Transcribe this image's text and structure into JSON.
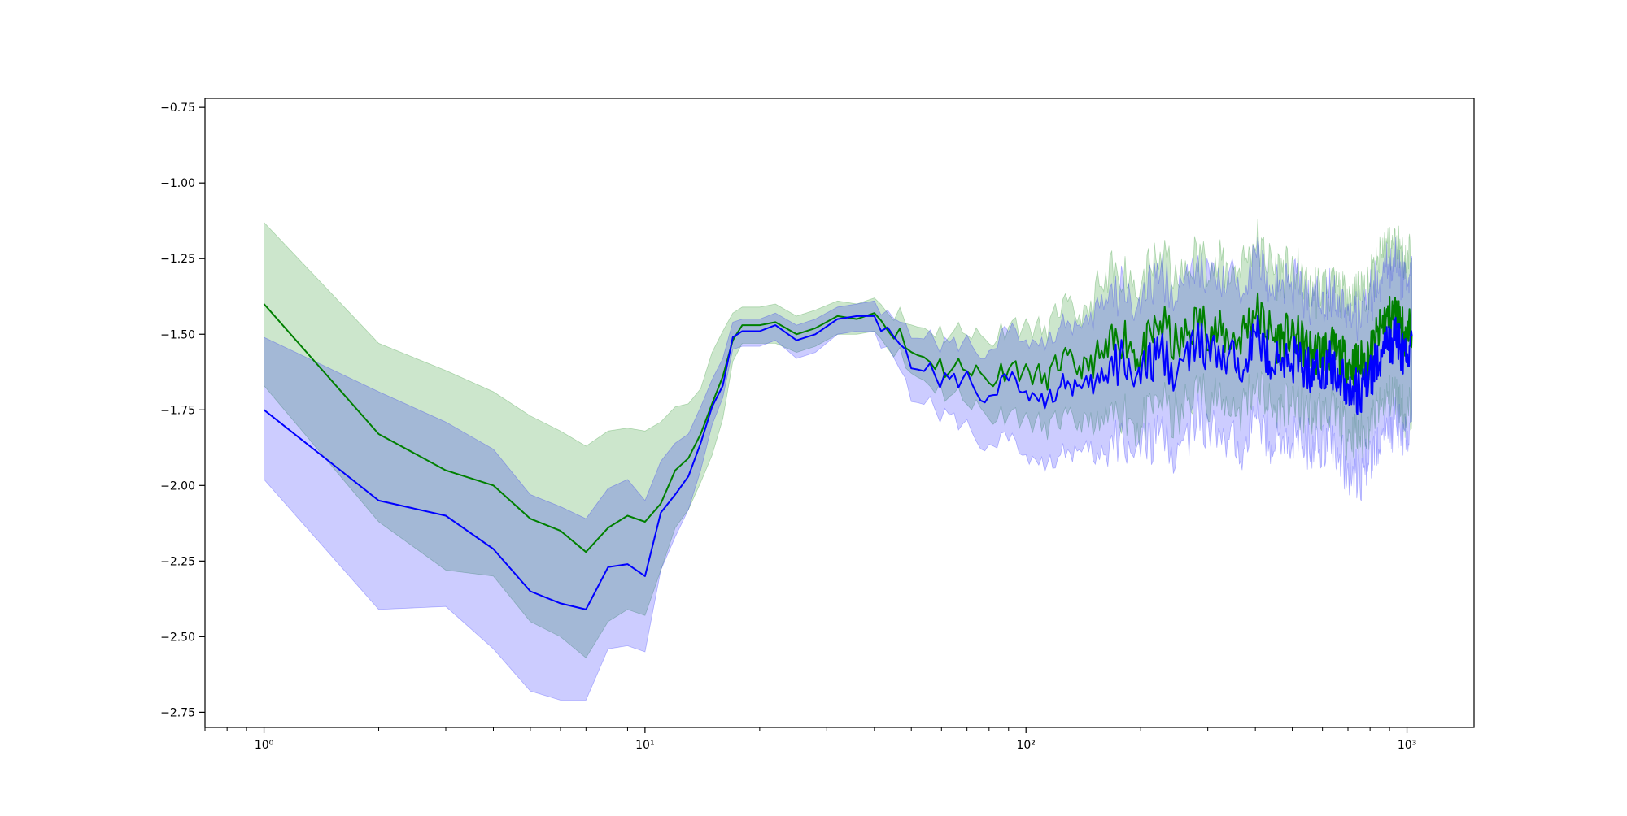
{
  "chart_data": {
    "type": "line",
    "title": "",
    "xlabel": "",
    "ylabel": "",
    "xscale": "log",
    "xlim": [
      0.7,
      1500
    ],
    "ylim": [
      -2.8,
      -0.72
    ],
    "grid": false,
    "legend": "none",
    "x_ticks": [
      {
        "value": 1,
        "label": "10⁰"
      },
      {
        "value": 10,
        "label": "10¹"
      },
      {
        "value": 100,
        "label": "10²"
      },
      {
        "value": 1000,
        "label": "10³"
      }
    ],
    "y_ticks": [
      {
        "value": -0.75,
        "label": "−0.75"
      },
      {
        "value": -1.0,
        "label": "−1.00"
      },
      {
        "value": -1.25,
        "label": "−1.25"
      },
      {
        "value": -1.5,
        "label": "−1.50"
      },
      {
        "value": -1.75,
        "label": "−1.75"
      },
      {
        "value": -2.0,
        "label": "−2.00"
      },
      {
        "value": -2.25,
        "label": "−2.25"
      },
      {
        "value": -2.5,
        "label": "−2.50"
      },
      {
        "value": -2.75,
        "label": "−2.75"
      }
    ],
    "x": [
      1,
      2,
      3,
      4,
      5,
      6,
      7,
      8,
      9,
      10,
      11,
      12,
      13,
      14,
      15,
      16,
      17,
      18,
      20,
      22,
      25,
      28,
      32,
      36,
      40,
      45,
      50,
      56,
      63,
      70,
      80,
      90,
      100,
      112,
      125,
      140,
      160,
      180,
      200,
      225,
      250,
      280,
      320,
      360,
      400,
      450,
      500,
      560,
      630,
      700,
      750,
      800,
      870,
      940,
      1000,
      1030
    ],
    "series": [
      {
        "color": "#008000",
        "band_color": "#008000",
        "band_opacity": 0.2,
        "values": [
          -1.4,
          -1.83,
          -1.95,
          -2.0,
          -2.11,
          -2.15,
          -2.22,
          -2.14,
          -2.1,
          -2.12,
          -2.06,
          -1.95,
          -1.91,
          -1.83,
          -1.73,
          -1.64,
          -1.52,
          -1.47,
          -1.47,
          -1.46,
          -1.5,
          -1.48,
          -1.44,
          -1.45,
          -1.43,
          -1.49,
          -1.56,
          -1.58,
          -1.62,
          -1.6,
          -1.66,
          -1.6,
          -1.62,
          -1.65,
          -1.58,
          -1.62,
          -1.58,
          -1.5,
          -1.58,
          -1.46,
          -1.55,
          -1.45,
          -1.5,
          -1.52,
          -1.42,
          -1.52,
          -1.5,
          -1.56,
          -1.55,
          -1.6,
          -1.6,
          -1.57,
          -1.46,
          -1.43,
          -1.52,
          -1.46
        ],
        "lower": [
          -1.67,
          -2.12,
          -2.28,
          -2.3,
          -2.45,
          -2.5,
          -2.57,
          -2.45,
          -2.41,
          -2.43,
          -2.28,
          -2.14,
          -2.08,
          -1.99,
          -1.9,
          -1.78,
          -1.59,
          -1.53,
          -1.53,
          -1.53,
          -1.56,
          -1.54,
          -1.5,
          -1.5,
          -1.49,
          -1.55,
          -1.63,
          -1.66,
          -1.7,
          -1.71,
          -1.78,
          -1.75,
          -1.78,
          -1.81,
          -1.78,
          -1.8,
          -1.78,
          -1.72,
          -1.78,
          -1.68,
          -1.77,
          -1.65,
          -1.7,
          -1.73,
          -1.64,
          -1.73,
          -1.71,
          -1.74,
          -1.73,
          -1.8,
          -1.82,
          -1.78,
          -1.7,
          -1.68,
          -1.76,
          -1.7
        ],
        "upper": [
          -1.13,
          -1.53,
          -1.62,
          -1.69,
          -1.77,
          -1.82,
          -1.87,
          -1.82,
          -1.81,
          -1.82,
          -1.79,
          -1.74,
          -1.73,
          -1.68,
          -1.56,
          -1.49,
          -1.43,
          -1.41,
          -1.41,
          -1.4,
          -1.44,
          -1.42,
          -1.39,
          -1.4,
          -1.38,
          -1.43,
          -1.47,
          -1.48,
          -1.5,
          -1.48,
          -1.53,
          -1.46,
          -1.47,
          -1.49,
          -1.4,
          -1.45,
          -1.38,
          -1.31,
          -1.38,
          -1.27,
          -1.36,
          -1.26,
          -1.3,
          -1.31,
          -1.22,
          -1.32,
          -1.3,
          -1.38,
          -1.37,
          -1.4,
          -1.38,
          -1.36,
          -1.24,
          -1.22,
          -1.29,
          -1.23
        ]
      },
      {
        "color": "#0000ff",
        "band_color": "#0000ff",
        "band_opacity": 0.2,
        "values": [
          -1.75,
          -2.05,
          -2.1,
          -2.21,
          -2.35,
          -2.39,
          -2.41,
          -2.27,
          -2.26,
          -2.3,
          -2.09,
          -2.03,
          -1.97,
          -1.86,
          -1.74,
          -1.67,
          -1.51,
          -1.49,
          -1.49,
          -1.47,
          -1.52,
          -1.5,
          -1.45,
          -1.44,
          -1.44,
          -1.51,
          -1.59,
          -1.62,
          -1.66,
          -1.64,
          -1.71,
          -1.66,
          -1.68,
          -1.72,
          -1.65,
          -1.69,
          -1.65,
          -1.58,
          -1.65,
          -1.55,
          -1.63,
          -1.53,
          -1.58,
          -1.6,
          -1.5,
          -1.6,
          -1.58,
          -1.62,
          -1.6,
          -1.67,
          -1.7,
          -1.64,
          -1.55,
          -1.52,
          -1.58,
          -1.5
        ],
        "lower": [
          -1.98,
          -2.41,
          -2.4,
          -2.54,
          -2.68,
          -2.71,
          -2.71,
          -2.54,
          -2.53,
          -2.55,
          -2.28,
          -2.17,
          -2.08,
          -1.95,
          -1.8,
          -1.71,
          -1.55,
          -1.54,
          -1.54,
          -1.52,
          -1.58,
          -1.56,
          -1.5,
          -1.49,
          -1.49,
          -1.58,
          -1.7,
          -1.73,
          -1.78,
          -1.8,
          -1.87,
          -1.86,
          -1.89,
          -1.93,
          -1.88,
          -1.9,
          -1.88,
          -1.82,
          -1.88,
          -1.79,
          -1.87,
          -1.76,
          -1.82,
          -1.85,
          -1.74,
          -1.84,
          -1.82,
          -1.85,
          -1.82,
          -1.92,
          -1.95,
          -1.89,
          -1.8,
          -1.77,
          -1.83,
          -1.75
        ],
        "upper": [
          -1.51,
          -1.69,
          -1.79,
          -1.88,
          -2.03,
          -2.07,
          -2.11,
          -2.01,
          -1.98,
          -2.05,
          -1.92,
          -1.86,
          -1.83,
          -1.74,
          -1.65,
          -1.58,
          -1.46,
          -1.45,
          -1.45,
          -1.43,
          -1.47,
          -1.45,
          -1.41,
          -1.4,
          -1.39,
          -1.45,
          -1.49,
          -1.51,
          -1.54,
          -1.52,
          -1.56,
          -1.5,
          -1.51,
          -1.53,
          -1.45,
          -1.49,
          -1.43,
          -1.37,
          -1.43,
          -1.32,
          -1.4,
          -1.31,
          -1.35,
          -1.36,
          -1.27,
          -1.37,
          -1.35,
          -1.4,
          -1.39,
          -1.44,
          -1.46,
          -1.4,
          -1.32,
          -1.29,
          -1.35,
          -1.27
        ]
      }
    ]
  }
}
